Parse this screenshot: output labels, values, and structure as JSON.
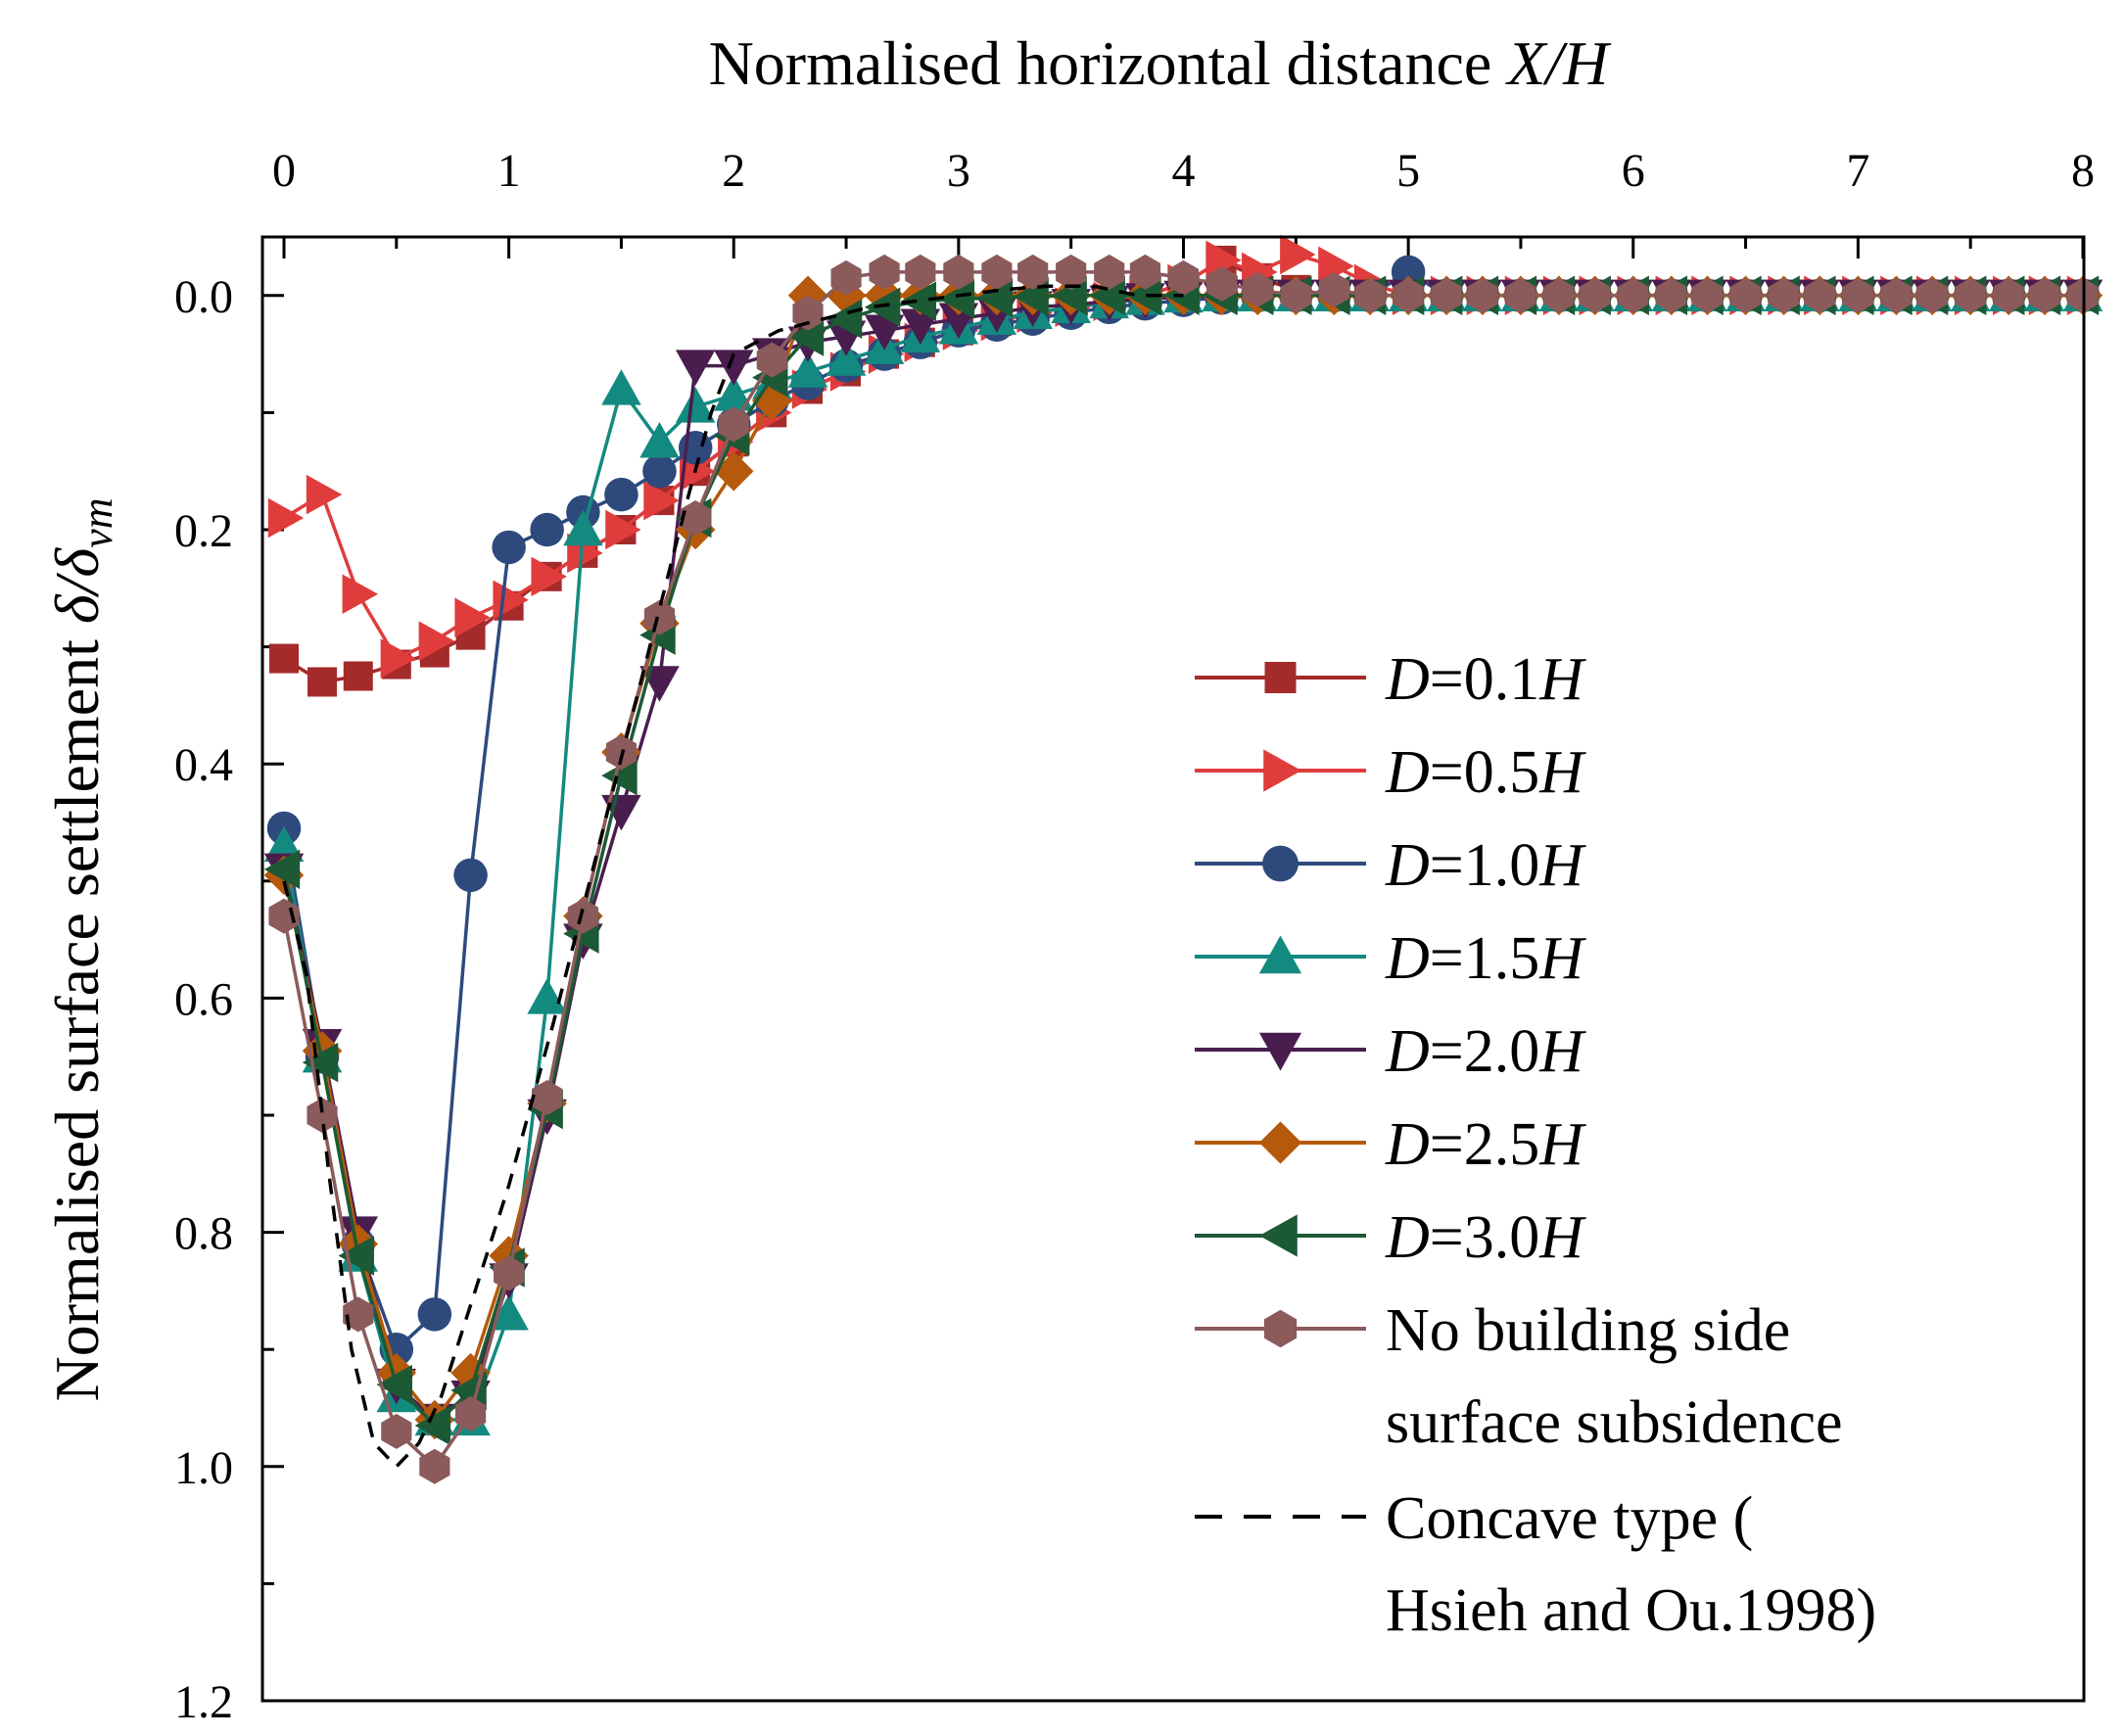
{
  "chart_data": {
    "type": "line",
    "title": "",
    "xlabel": "Normalised horizontal distance X/H",
    "xlabel_parts": {
      "text": "Normalised horizontal distance ",
      "var": "X/H"
    },
    "ylabel": "Normalised surface settlement δ/δvm",
    "ylabel_parts": {
      "text": "Normalised surface settlement ",
      "var": "δ/δ",
      "sub": "vm"
    },
    "xlim": [
      0,
      8
    ],
    "ylim": [
      1.2,
      -0.05
    ],
    "y_inverted": true,
    "x_axis_position": "top",
    "xticks": [
      "0",
      "1",
      "2",
      "3",
      "4",
      "5",
      "6",
      "7",
      "8"
    ],
    "yticks": [
      "0.0",
      "0.2",
      "0.4",
      "0.6",
      "0.8",
      "1.0",
      "1.2"
    ],
    "legend_position": "right-center",
    "series": [
      {
        "name": "D=0.1H",
        "legend_var": "D",
        "legend_rest": "=0.1",
        "legend_unit": "H",
        "color": "#a52a2a",
        "marker": "square",
        "x": [
          0,
          0.17,
          0.33,
          0.5,
          0.67,
          0.83,
          1.0,
          1.17,
          1.33,
          1.5,
          1.67,
          1.83,
          2.0,
          2.17,
          2.33,
          2.5,
          2.67,
          2.83,
          3.0,
          3.17,
          3.33,
          3.5,
          3.67,
          3.83,
          4.0,
          4.17,
          4.33,
          4.5,
          4.67,
          4.83,
          5.0,
          5.17,
          5.33,
          5.5,
          5.67,
          5.83,
          6.0,
          6.17,
          6.33,
          6.5,
          6.67,
          6.83,
          7.0,
          7.17,
          7.33,
          7.5,
          7.67,
          7.83,
          8.0
        ],
        "y": [
          0.31,
          0.33,
          0.325,
          0.315,
          0.305,
          0.29,
          0.265,
          0.24,
          0.22,
          0.2,
          0.175,
          0.15,
          0.125,
          0.1,
          0.08,
          0.065,
          0.05,
          0.04,
          0.03,
          0.022,
          0.015,
          0.01,
          0.005,
          0.0,
          -0.01,
          -0.03,
          -0.015,
          -0.005,
          0.0,
          0.0,
          0.0,
          0.0,
          0.0,
          0.0,
          0.0,
          0.0,
          0.0,
          0.0,
          0.0,
          0.0,
          0.0,
          0.0,
          0.0,
          0.0,
          0.0,
          0.0,
          0.0,
          0.0,
          0.0
        ]
      },
      {
        "name": "D=0.5H",
        "legend_var": "D",
        "legend_rest": "=0.5",
        "legend_unit": "H",
        "color": "#e03c3c",
        "marker": "triangle-right",
        "x": [
          0,
          0.17,
          0.33,
          0.5,
          0.67,
          0.83,
          1.0,
          1.17,
          1.33,
          1.5,
          1.67,
          1.83,
          2.0,
          2.17,
          2.33,
          2.5,
          2.67,
          2.83,
          3.0,
          3.17,
          3.33,
          3.5,
          3.67,
          3.83,
          4.0,
          4.17,
          4.33,
          4.5,
          4.67,
          4.83,
          5.0,
          5.17,
          5.33,
          5.5,
          5.67,
          5.83,
          6.0,
          6.17,
          6.33,
          6.5,
          6.67,
          6.83,
          7.0,
          7.17,
          7.33,
          7.5,
          7.67,
          7.83,
          8.0
        ],
        "y": [
          0.19,
          0.17,
          0.255,
          0.31,
          0.295,
          0.275,
          0.26,
          0.24,
          0.22,
          0.2,
          0.175,
          0.15,
          0.125,
          0.1,
          0.08,
          0.065,
          0.05,
          0.04,
          0.03,
          0.022,
          0.015,
          0.01,
          0.005,
          0.0,
          -0.01,
          -0.03,
          -0.02,
          -0.035,
          -0.025,
          -0.01,
          0.0,
          0.0,
          0.0,
          0.0,
          0.0,
          0.0,
          0.0,
          0.0,
          0.0,
          0.0,
          0.0,
          0.0,
          0.0,
          0.0,
          0.0,
          0.0,
          0.0,
          0.0,
          0.0
        ]
      },
      {
        "name": "D=1.0H",
        "legend_var": "D",
        "legend_rest": "=1.0",
        "legend_unit": "H",
        "color": "#2e4a7d",
        "marker": "circle",
        "x": [
          0,
          0.17,
          0.33,
          0.5,
          0.67,
          0.83,
          1.0,
          1.17,
          1.33,
          1.5,
          1.67,
          1.83,
          2.0,
          2.17,
          2.33,
          2.5,
          2.67,
          2.83,
          3.0,
          3.17,
          3.33,
          3.5,
          3.67,
          3.83,
          4.0,
          4.17,
          4.33,
          4.5,
          4.67,
          4.83,
          5.0,
          5.17,
          5.33,
          5.5,
          5.67,
          5.83,
          6.0,
          6.17,
          6.33,
          6.5,
          6.67,
          6.83,
          7.0,
          7.17,
          7.33,
          7.5,
          7.67,
          7.83,
          8.0
        ],
        "y": [
          0.455,
          0.65,
          0.81,
          0.9,
          0.87,
          0.495,
          0.215,
          0.2,
          0.185,
          0.17,
          0.15,
          0.13,
          0.11,
          0.09,
          0.075,
          0.06,
          0.05,
          0.04,
          0.03,
          0.025,
          0.02,
          0.015,
          0.01,
          0.007,
          0.004,
          0.002,
          0.0,
          0.0,
          0.0,
          0.0,
          -0.02,
          0.0,
          0.0,
          0.0,
          0.0,
          0.0,
          0.0,
          0.0,
          0.0,
          0.0,
          0.0,
          0.0,
          0.0,
          0.0,
          0.0,
          0.0,
          0.0,
          0.0,
          0.0
        ]
      },
      {
        "name": "D=1.5H",
        "legend_var": "D",
        "legend_rest": "=1.5",
        "legend_unit": "H",
        "color": "#138a80",
        "marker": "triangle-up",
        "x": [
          0,
          0.17,
          0.33,
          0.5,
          0.67,
          0.83,
          1.0,
          1.17,
          1.33,
          1.5,
          1.67,
          1.83,
          2.0,
          2.17,
          2.33,
          2.5,
          2.67,
          2.83,
          3.0,
          3.17,
          3.33,
          3.5,
          3.67,
          3.83,
          4.0,
          4.17,
          4.33,
          4.5,
          4.67,
          4.83,
          5.0,
          5.17,
          5.33,
          5.5,
          5.67,
          5.83,
          6.0,
          6.17,
          6.33,
          6.5,
          6.67,
          6.83,
          7.0,
          7.17,
          7.33,
          7.5,
          7.67,
          7.83,
          8.0
        ],
        "y": [
          0.47,
          0.65,
          0.82,
          0.94,
          0.96,
          0.96,
          0.87,
          0.6,
          0.2,
          0.08,
          0.125,
          0.095,
          0.085,
          0.075,
          0.065,
          0.055,
          0.045,
          0.035,
          0.028,
          0.02,
          0.015,
          0.01,
          0.006,
          0.003,
          0.001,
          0.0,
          0.0,
          0.0,
          0.0,
          0.0,
          0.0,
          0.0,
          0.0,
          0.0,
          0.0,
          0.0,
          0.0,
          0.0,
          0.0,
          0.0,
          0.0,
          0.0,
          0.0,
          0.0,
          0.0,
          0.0,
          0.0,
          0.0,
          0.0
        ]
      },
      {
        "name": "D=2.0H",
        "legend_var": "D",
        "legend_rest": "=2.0",
        "legend_unit": "H",
        "color": "#4a1d4f",
        "marker": "triangle-down",
        "x": [
          0,
          0.17,
          0.33,
          0.5,
          0.67,
          0.83,
          1.0,
          1.17,
          1.33,
          1.5,
          1.67,
          1.83,
          2.0,
          2.17,
          2.33,
          2.5,
          2.67,
          2.83,
          3.0,
          3.17,
          3.33,
          3.5,
          3.67,
          3.83,
          4.0,
          4.17,
          4.33,
          4.5,
          4.67,
          4.83,
          5.0,
          5.17,
          5.33,
          5.5,
          5.67,
          5.83,
          6.0,
          6.17,
          6.33,
          6.5,
          6.67,
          6.83,
          7.0,
          7.17,
          7.33,
          7.5,
          7.67,
          7.83,
          8.0
        ],
        "y": [
          0.49,
          0.64,
          0.8,
          0.93,
          0.96,
          0.94,
          0.84,
          0.7,
          0.55,
          0.44,
          0.33,
          0.06,
          0.06,
          0.05,
          0.04,
          0.035,
          0.03,
          0.025,
          0.02,
          0.015,
          0.01,
          0.008,
          0.005,
          0.003,
          0.001,
          0.0,
          0.0,
          0.0,
          0.0,
          0.0,
          0.0,
          0.0,
          0.0,
          0.0,
          0.0,
          0.0,
          0.0,
          0.0,
          0.0,
          0.0,
          0.0,
          0.0,
          0.0,
          0.0,
          0.0,
          0.0,
          0.0,
          0.0,
          0.0
        ]
      },
      {
        "name": "D=2.5H",
        "legend_var": "D",
        "legend_rest": "=2.5",
        "legend_unit": "H",
        "color": "#b5590c",
        "marker": "diamond",
        "x": [
          0,
          0.17,
          0.33,
          0.5,
          0.67,
          0.83,
          1.0,
          1.17,
          1.33,
          1.5,
          1.67,
          1.83,
          2.0,
          2.17,
          2.33,
          2.5,
          2.67,
          2.83,
          3.0,
          3.17,
          3.33,
          3.5,
          3.67,
          3.83,
          4.0,
          4.17,
          4.33,
          4.5,
          4.67,
          4.83,
          5.0,
          5.17,
          5.33,
          5.5,
          5.67,
          5.83,
          6.0,
          6.17,
          6.33,
          6.5,
          6.67,
          6.83,
          7.0,
          7.17,
          7.33,
          7.5,
          7.67,
          7.83,
          8.0
        ],
        "y": [
          0.495,
          0.645,
          0.81,
          0.92,
          0.96,
          0.92,
          0.82,
          0.69,
          0.53,
          0.39,
          0.28,
          0.2,
          0.15,
          0.09,
          0.0,
          0.0,
          0.0,
          0.0,
          0.0,
          0.0,
          0.0,
          0.0,
          0.0,
          0.0,
          0.0,
          0.0,
          0.0,
          0.0,
          0.0,
          0.0,
          0.0,
          0.0,
          0.0,
          0.0,
          0.0,
          0.0,
          0.0,
          0.0,
          0.0,
          0.0,
          0.0,
          0.0,
          0.0,
          0.0,
          0.0,
          0.0,
          0.0,
          0.0,
          0.0
        ]
      },
      {
        "name": "D=3.0H",
        "legend_var": "D",
        "legend_rest": "=3.0",
        "legend_unit": "H",
        "color": "#1c5935",
        "marker": "triangle-left",
        "x": [
          0,
          0.17,
          0.33,
          0.5,
          0.67,
          0.83,
          1.0,
          1.17,
          1.33,
          1.5,
          1.67,
          1.83,
          2.0,
          2.17,
          2.33,
          2.5,
          2.67,
          2.83,
          3.0,
          3.17,
          3.33,
          3.5,
          3.67,
          3.83,
          4.0,
          4.17,
          4.33,
          4.5,
          4.67,
          4.83,
          5.0,
          5.17,
          5.33,
          5.5,
          5.67,
          5.83,
          6.0,
          6.17,
          6.33,
          6.5,
          6.67,
          6.83,
          7.0,
          7.17,
          7.33,
          7.5,
          7.67,
          7.83,
          8.0
        ],
        "y": [
          0.49,
          0.655,
          0.82,
          0.93,
          0.965,
          0.935,
          0.83,
          0.695,
          0.545,
          0.41,
          0.29,
          0.19,
          0.12,
          0.07,
          0.035,
          0.02,
          0.01,
          0.005,
          0.003,
          0.002,
          0.001,
          0.0,
          0.0,
          0.0,
          0.0,
          0.0,
          0.0,
          0.0,
          0.0,
          0.0,
          0.0,
          0.0,
          0.0,
          0.0,
          0.0,
          0.0,
          0.0,
          0.0,
          0.0,
          0.0,
          0.0,
          0.0,
          0.0,
          0.0,
          0.0,
          0.0,
          0.0,
          0.0,
          0.0
        ]
      },
      {
        "name": "No building side surface subsidence",
        "legend_line1": "No building side",
        "legend_line2": "surface subsidence",
        "color": "#8b5a5a",
        "marker": "hexagon",
        "x": [
          0,
          0.17,
          0.33,
          0.5,
          0.67,
          0.83,
          1.0,
          1.17,
          1.33,
          1.5,
          1.67,
          1.83,
          2.0,
          2.17,
          2.33,
          2.5,
          2.67,
          2.83,
          3.0,
          3.17,
          3.33,
          3.5,
          3.67,
          3.83,
          4.0,
          4.17,
          4.33,
          4.5,
          4.67,
          4.83,
          5.0,
          5.17,
          5.33,
          5.5,
          5.67,
          5.83,
          6.0,
          6.17,
          6.33,
          6.5,
          6.67,
          6.83,
          7.0,
          7.17,
          7.33,
          7.5,
          7.67,
          7.83,
          8.0
        ],
        "y": [
          0.53,
          0.7,
          0.87,
          0.97,
          1.0,
          0.955,
          0.835,
          0.685,
          0.53,
          0.39,
          0.275,
          0.19,
          0.11,
          0.055,
          0.015,
          -0.015,
          -0.02,
          -0.02,
          -0.02,
          -0.02,
          -0.02,
          -0.02,
          -0.02,
          -0.02,
          -0.015,
          -0.01,
          -0.005,
          0.0,
          -0.005,
          0.0,
          0.0,
          0.0,
          0.0,
          0.0,
          0.0,
          0.0,
          0.0,
          0.0,
          0.0,
          0.0,
          0.0,
          0.0,
          0.0,
          0.0,
          0.0,
          0.0,
          0.0,
          0.0,
          0.0
        ]
      },
      {
        "name": "Concave type (Hsieh and Ou.1998)",
        "legend_line1": "Concave type (",
        "legend_line2": "Hsieh and Ou.1998)",
        "color": "#000000",
        "marker": "none",
        "dashed": true,
        "x": [
          0,
          0.1,
          0.2,
          0.3,
          0.4,
          0.5,
          0.6,
          0.7,
          0.8,
          0.9,
          1.0,
          1.1,
          1.2,
          1.3,
          1.4,
          1.5,
          1.6,
          1.7,
          1.8,
          1.9,
          2.0,
          2.2,
          2.4,
          2.6,
          2.8,
          3.0,
          3.2,
          3.4,
          3.6,
          3.8,
          4.0
        ],
        "y": [
          0.5,
          0.58,
          0.75,
          0.9,
          0.98,
          1.0,
          0.98,
          0.94,
          0.88,
          0.82,
          0.76,
          0.69,
          0.62,
          0.545,
          0.47,
          0.395,
          0.32,
          0.245,
          0.17,
          0.1,
          0.05,
          0.03,
          0.02,
          0.01,
          0.005,
          0.0,
          -0.005,
          -0.008,
          -0.008,
          0.0,
          0.0
        ]
      }
    ]
  }
}
